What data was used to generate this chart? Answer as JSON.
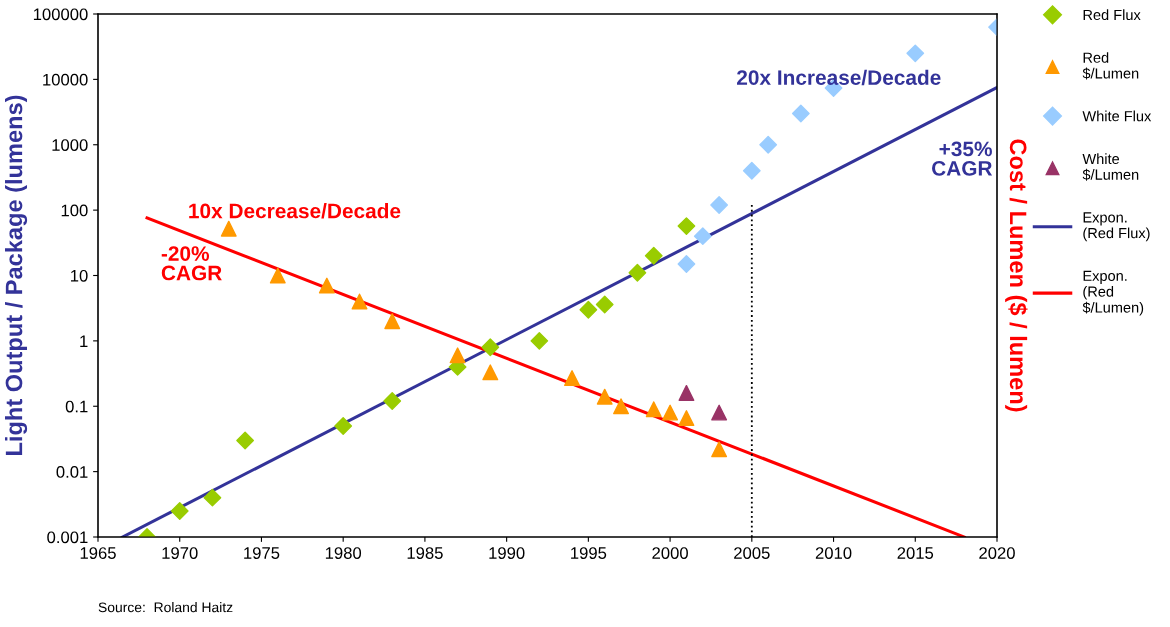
{
  "chart_data": {
    "type": "scatter",
    "xlabel": null,
    "ylabel": "Light Output / Package (lumens)",
    "y2label": "Cost / Lumen ($ / lumen)",
    "log": "y",
    "grid": false,
    "legend": "right",
    "xlim": [
      1965,
      2020
    ],
    "xticks": [
      1965,
      1970,
      1975,
      1980,
      1985,
      1990,
      1995,
      2000,
      2005,
      2010,
      2015,
      2020
    ],
    "ylim": [
      0.001,
      100000
    ],
    "yticks": [
      0.001,
      0.01,
      0.1,
      1,
      10,
      100,
      1000,
      10000,
      100000
    ],
    "series": [
      {
        "name": "Red Flux",
        "marker": "diamond",
        "color": "#99cc00",
        "x": [
          1968,
          1970,
          1972,
          1974,
          1980,
          1983,
          1987,
          1989,
          1992,
          1995,
          1996,
          1998,
          1999,
          2001
        ],
        "values": [
          0.001,
          0.0025,
          0.004,
          0.03,
          0.05,
          0.12,
          0.4,
          0.8,
          1.0,
          3,
          3.6,
          11,
          20,
          57
        ]
      },
      {
        "name": "Red $/Lumen",
        "marker": "triangle",
        "color": "#ff9900",
        "x": [
          1973,
          1976,
          1979,
          1981,
          1983,
          1987,
          1989,
          1994,
          1996,
          1997,
          1999,
          2000,
          2001,
          2003
        ],
        "values": [
          52,
          10,
          7,
          4,
          2,
          0.6,
          0.33,
          0.27,
          0.14,
          0.1,
          0.09,
          0.08,
          0.066,
          0.022
        ]
      },
      {
        "name": "White Flux",
        "marker": "diamond",
        "color": "#99ccff",
        "x": [
          2001,
          2002,
          2003,
          2005,
          2006,
          2008,
          2010,
          2015,
          2020
        ],
        "values": [
          15,
          40,
          120,
          400,
          1000,
          3000,
          7400,
          25000,
          63000
        ]
      },
      {
        "name": "White $/Lumen",
        "marker": "triangle",
        "color": "#993366",
        "x": [
          2001,
          2003
        ],
        "values": [
          0.16,
          0.08
        ]
      },
      {
        "name": "Expon. (Red Flux)",
        "type": "line",
        "marker": "none",
        "line_style": "solid",
        "color": "#333399",
        "x": [
          1966.5,
          2020
        ],
        "values": [
          0.001,
          7500
        ]
      },
      {
        "name": "Expon. (Red $/Lumen)",
        "type": "line",
        "marker": "none",
        "line_style": "solid",
        "color": "#ff0000",
        "x": [
          1968,
          2018
        ],
        "values": [
          76,
          0.001
        ]
      },
      {
        "type": "line",
        "marker": "none",
        "line_style": "dotted",
        "color": "#000000",
        "x": [
          2005,
          2005
        ],
        "values": [
          0.001,
          130
        ]
      }
    ],
    "annotations": [
      "20x Increase/Decade",
      "+35%\nCAGR",
      "10x Decrease/Decade",
      "-20%\nCAGR",
      "Source:  Roland Haitz"
    ]
  }
}
